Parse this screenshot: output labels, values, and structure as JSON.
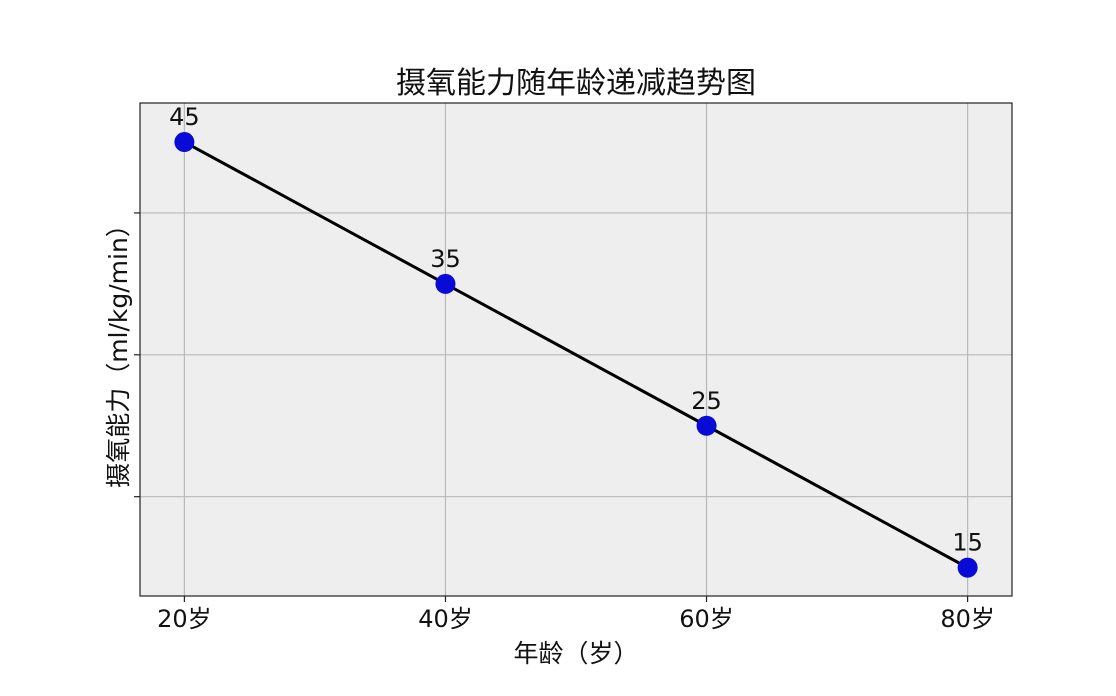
{
  "chart_data": {
    "type": "line",
    "title": "摄氧能力随年龄递减趋势图",
    "xlabel": "年龄（岁）",
    "ylabel": "摄氧能力（ml/kg/min）",
    "x": [
      20,
      40,
      60,
      80
    ],
    "categories": [
      "20岁",
      "40岁",
      "60岁",
      "80岁"
    ],
    "values": [
      45,
      35,
      25,
      15
    ],
    "data_labels": [
      "45",
      "35",
      "25",
      "15"
    ],
    "xlim": [
      16.6,
      83.4
    ],
    "ylim": [
      13,
      47.75
    ],
    "y_gridlines": [
      20,
      30,
      40
    ],
    "y_tick_labels_shown": false,
    "grid": true,
    "line_color": "#000000",
    "marker_color": "#0a0ad6",
    "background_color": "#eeeeee"
  }
}
